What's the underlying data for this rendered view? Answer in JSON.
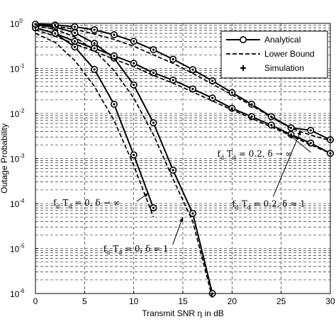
{
  "chart_data": {
    "type": "line",
    "xlabel": "Transmit SNR η in dB",
    "ylabel": "Outage Probability",
    "xlim": [
      0,
      30
    ],
    "ylim": [
      1e-06,
      1
    ],
    "yscale": "log",
    "grid": true,
    "x_ticks": [
      "0",
      "5",
      "10",
      "15",
      "20",
      "25",
      "30"
    ],
    "y_ticks": [
      {
        "base": "10",
        "exp": "0"
      },
      {
        "base": "10",
        "exp": "-1"
      },
      {
        "base": "10",
        "exp": "-2"
      },
      {
        "base": "10",
        "exp": "-3"
      },
      {
        "base": "10",
        "exp": "-4"
      },
      {
        "base": "10",
        "exp": "-5"
      },
      {
        "base": "10",
        "exp": "-6"
      }
    ],
    "legend": {
      "position": "top-right",
      "entries": [
        "Analytical",
        "Lower Bound",
        "Simulation"
      ]
    },
    "series": [
      {
        "key": "fd0_inf",
        "style": "analytical",
        "x": [
          0,
          2,
          4,
          6,
          8,
          10,
          12
        ],
        "y": [
          0.8,
          0.6,
          0.3,
          0.095,
          0.016,
          0.0012,
          8e-05
        ]
      },
      {
        "key": "fd0_inf",
        "style": "lower-bound",
        "x": [
          0,
          2,
          4,
          6,
          8,
          10,
          12
        ],
        "y": [
          0.6,
          0.38,
          0.15,
          0.04,
          0.007,
          0.0007,
          5e-05
        ]
      },
      {
        "key": "fd0_1",
        "style": "analytical",
        "x": [
          0,
          2,
          4,
          6,
          8,
          10,
          12,
          14,
          16,
          18
        ],
        "y": [
          0.92,
          0.83,
          0.62,
          0.36,
          0.17,
          0.043,
          0.0062,
          0.00055,
          6e-05,
          1e-06
        ]
      },
      {
        "key": "fd0_1",
        "style": "lower-bound",
        "x": [
          0,
          2,
          4,
          6,
          8,
          10,
          12,
          14,
          16,
          18
        ],
        "y": [
          0.88,
          0.74,
          0.5,
          0.25,
          0.09,
          0.022,
          0.0034,
          0.00035,
          4e-05,
          8e-07
        ]
      },
      {
        "key": "fd02_inf",
        "style": "analytical",
        "x": [
          0,
          2,
          4,
          6,
          8,
          10,
          12,
          14,
          16,
          18,
          20,
          22,
          24,
          26,
          28,
          30
        ],
        "y": [
          0.8,
          0.6,
          0.4,
          0.28,
          0.19,
          0.13,
          0.08,
          0.055,
          0.035,
          0.022,
          0.013,
          0.0085,
          0.0055,
          0.0034,
          0.0022,
          0.0013
        ]
      },
      {
        "key": "fd02_inf",
        "style": "lower-bound",
        "x": [
          0,
          2,
          4,
          6,
          8,
          10,
          12,
          14,
          16,
          18,
          20,
          22,
          24,
          26,
          28,
          30
        ],
        "y": [
          0.72,
          0.52,
          0.35,
          0.24,
          0.16,
          0.11,
          0.07,
          0.047,
          0.03,
          0.019,
          0.012,
          0.0078,
          0.005,
          0.0032,
          0.002,
          0.0013
        ]
      },
      {
        "key": "fd02_1",
        "style": "analytical",
        "x": [
          0,
          2,
          4,
          6,
          8,
          10,
          12,
          14,
          16,
          18,
          20,
          22,
          24,
          26,
          28,
          30
        ],
        "y": [
          0.96,
          0.92,
          0.84,
          0.72,
          0.56,
          0.4,
          0.26,
          0.16,
          0.094,
          0.053,
          0.029,
          0.016,
          0.0085,
          0.0048,
          0.0042,
          0.0026
        ]
      },
      {
        "key": "fd02_1",
        "style": "lower-bound",
        "x": [
          0,
          2,
          4,
          6,
          8,
          10,
          12,
          14,
          16,
          18,
          20,
          22,
          24,
          26,
          28,
          30
        ],
        "y": [
          0.93,
          0.86,
          0.74,
          0.58,
          0.44,
          0.31,
          0.2,
          0.13,
          0.078,
          0.045,
          0.026,
          0.015,
          0.0082,
          0.0047,
          0.0033,
          0.0025
        ]
      }
    ],
    "annotations": [
      {
        "id": "fd02_inf",
        "lead": "f",
        "sub1": "d",
        "mid": " T",
        "sub2": "d",
        "rest": " = 0.2, δ → ∞",
        "at": [
          18.5,
          0.0011
        ],
        "arrow_to": [
          25.8,
          0.0034
        ]
      },
      {
        "id": "fd0_inf",
        "lead": "f",
        "sub1": "d",
        "mid": " T",
        "sub2": "d",
        "rest": " = 0, δ → ∞",
        "at": [
          1.8,
          9e-05
        ],
        "arrow_to": [
          11.5,
          0.00017
        ]
      },
      {
        "id": "fd02_1",
        "lead": "f",
        "sub1": "d",
        "mid": " T",
        "sub2": "d",
        "rest": " = 0.2, δ = 1",
        "at": [
          20,
          8.5e-05
        ],
        "arrow_to": [
          27,
          0.0042
        ]
      },
      {
        "id": "fd0_1",
        "lead": "f",
        "sub1": "d",
        "mid": " T",
        "sub2": "d",
        "rest": " = 0, δ = 1",
        "at": [
          6.9,
          8.5e-06
        ],
        "arrow_to": [
          15,
          5e-05
        ]
      }
    ]
  }
}
